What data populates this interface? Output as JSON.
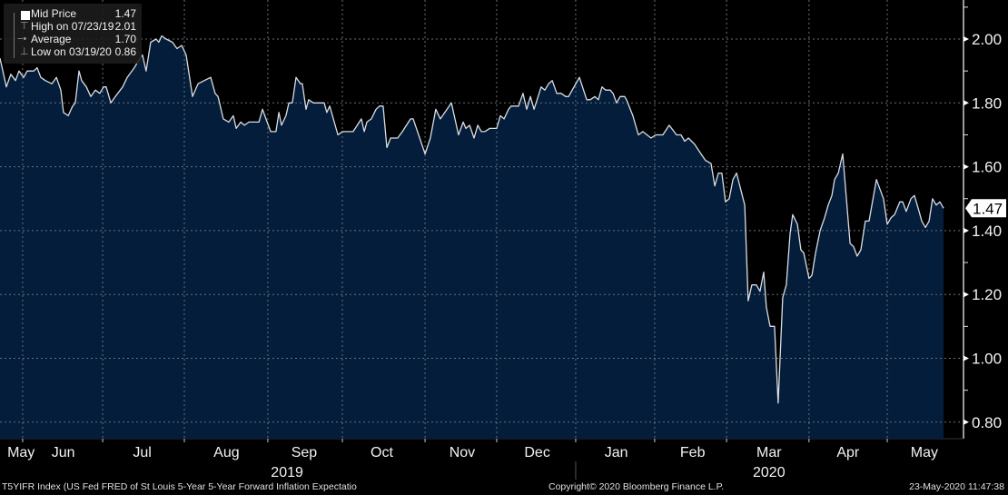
{
  "legend": {
    "items": [
      {
        "label": "Mid Price",
        "value": "1.47"
      },
      {
        "label": "High on 07/23/19",
        "value": "2.01"
      },
      {
        "label": "Average",
        "value": "1.70"
      },
      {
        "label": "Low on 03/19/20",
        "value": "0.86"
      }
    ]
  },
  "footer": {
    "security": "T5YIFR Index (US Fed FRED of St Louis 5-Year 5-Year Forward Inflation Expectatio",
    "copyright": "Copyright© 2020 Bloomberg Finance L.P.",
    "timestamp": "23-May-2020 11:47:38"
  },
  "colors": {
    "fill": "#041d3b",
    "line": "#d9dde3",
    "background": "#000000"
  },
  "chart_data": {
    "type": "area",
    "title": "",
    "xlabel": "",
    "ylabel": "",
    "x_units": "days since start of window (late May 2019)",
    "xlim": [
      0,
      365.5
    ],
    "ylim": [
      0.76,
      2.12
    ],
    "grid": true,
    "y_ticks": [
      2.0,
      1.8,
      1.6,
      1.4,
      1.2,
      1.0,
      0.8
    ],
    "y_tick_labels": [
      "2.00",
      "1.80",
      "1.60",
      "1.40",
      "1.20",
      "1.00",
      "0.80"
    ],
    "last_value_label": "1.47",
    "last_value": 1.47,
    "month_boundaries": [
      8.6,
      39,
      70,
      101.7,
      130,
      161.4,
      188.6,
      218.6,
      248.6,
      275.9,
      307.2,
      336.9
    ],
    "month_labels": [
      {
        "label": "May",
        "t": 8
      },
      {
        "label": "Jun",
        "t": 24
      },
      {
        "label": "Jul",
        "t": 54
      },
      {
        "label": "Aug",
        "t": 86
      },
      {
        "label": "Sep",
        "t": 115.5
      },
      {
        "label": "Oct",
        "t": 145
      },
      {
        "label": "Nov",
        "t": 175.5
      },
      {
        "label": "Dec",
        "t": 204
      },
      {
        "label": "Jan",
        "t": 234
      },
      {
        "label": "Feb",
        "t": 263
      },
      {
        "label": "Mar",
        "t": 292
      },
      {
        "label": "Apr",
        "t": 322
      },
      {
        "label": "May",
        "t": 351
      }
    ],
    "year_labels": [
      {
        "label": "2019",
        "t": 109
      },
      {
        "label": "2020",
        "t": 292
      }
    ],
    "year_boundary": 218.6,
    "series": [
      {
        "name": "Mid Price",
        "points": [
          [
            0,
            1.94
          ],
          [
            2.4,
            1.85
          ],
          [
            4.1,
            1.89
          ],
          [
            5.9,
            1.87
          ],
          [
            7.2,
            1.9
          ],
          [
            9.0,
            1.88
          ],
          [
            10.3,
            1.9
          ],
          [
            12.8,
            1.9
          ],
          [
            14.1,
            1.91
          ],
          [
            15.5,
            1.88
          ],
          [
            17.2,
            1.87
          ],
          [
            19.7,
            1.86
          ],
          [
            21.4,
            1.88
          ],
          [
            23.1,
            1.84
          ],
          [
            24.1,
            1.77
          ],
          [
            25.9,
            1.76
          ],
          [
            27.6,
            1.79
          ],
          [
            28.6,
            1.8
          ],
          [
            30,
            1.9
          ],
          [
            31,
            1.87
          ],
          [
            32.8,
            1.85
          ],
          [
            34.5,
            1.82
          ],
          [
            36.2,
            1.84
          ],
          [
            37.9,
            1.83
          ],
          [
            39.3,
            1.85
          ],
          [
            40.3,
            1.85
          ],
          [
            42.1,
            1.8
          ],
          [
            43.8,
            1.82
          ],
          [
            46.6,
            1.85
          ],
          [
            48.3,
            1.88
          ],
          [
            51,
            1.91
          ],
          [
            52.4,
            1.93
          ],
          [
            54.1,
            1.95
          ],
          [
            55.5,
            1.9
          ],
          [
            57.2,
            1.99
          ],
          [
            59.3,
            2.0
          ],
          [
            60.3,
            1.99
          ],
          [
            61.4,
            2.01
          ],
          [
            63.1,
            2.0
          ],
          [
            65.5,
            1.99
          ],
          [
            67.2,
            1.97
          ],
          [
            69,
            1.98
          ],
          [
            70.7,
            1.95
          ],
          [
            73.1,
            1.82
          ],
          [
            75.2,
            1.86
          ],
          [
            77.6,
            1.87
          ],
          [
            80,
            1.88
          ],
          [
            81.7,
            1.83
          ],
          [
            82.8,
            1.82
          ],
          [
            84.8,
            1.75
          ],
          [
            86.9,
            1.74
          ],
          [
            88.6,
            1.76
          ],
          [
            89.7,
            1.72
          ],
          [
            91.4,
            1.74
          ],
          [
            92.8,
            1.73
          ],
          [
            94.5,
            1.74
          ],
          [
            98.3,
            1.74
          ],
          [
            99.7,
            1.78
          ],
          [
            101,
            1.75
          ],
          [
            102.8,
            1.71
          ],
          [
            104.8,
            1.71
          ],
          [
            105.9,
            1.77
          ],
          [
            106.9,
            1.73
          ],
          [
            108.6,
            1.76
          ],
          [
            109.7,
            1.8
          ],
          [
            111,
            1.8
          ],
          [
            112.4,
            1.88
          ],
          [
            114.1,
            1.86
          ],
          [
            114.8,
            1.86
          ],
          [
            116.2,
            1.78
          ],
          [
            117.2,
            1.81
          ],
          [
            119,
            1.8
          ],
          [
            120.7,
            1.8
          ],
          [
            123.1,
            1.8
          ],
          [
            124.1,
            1.77
          ],
          [
            125.2,
            1.79
          ],
          [
            128.3,
            1.7
          ],
          [
            130,
            1.71
          ],
          [
            134.1,
            1.71
          ],
          [
            137.2,
            1.75
          ],
          [
            138.3,
            1.71
          ],
          [
            139.3,
            1.74
          ],
          [
            141,
            1.75
          ],
          [
            142.8,
            1.78
          ],
          [
            144.1,
            1.79
          ],
          [
            145.5,
            1.79
          ],
          [
            146.9,
            1.66
          ],
          [
            148.3,
            1.69
          ],
          [
            150,
            1.69
          ],
          [
            151,
            1.69
          ],
          [
            152.8,
            1.71
          ],
          [
            155.9,
            1.75
          ],
          [
            156.9,
            1.75
          ],
          [
            161.4,
            1.64
          ],
          [
            163.4,
            1.69
          ],
          [
            165.5,
            1.78
          ],
          [
            167.2,
            1.75
          ],
          [
            171.4,
            1.8
          ],
          [
            174.1,
            1.7
          ],
          [
            175.9,
            1.74
          ],
          [
            176.9,
            1.72
          ],
          [
            178.3,
            1.73
          ],
          [
            180,
            1.69
          ],
          [
            181.4,
            1.73
          ],
          [
            182.8,
            1.71
          ],
          [
            184.1,
            1.71
          ],
          [
            185.9,
            1.72
          ],
          [
            188.6,
            1.72
          ],
          [
            190,
            1.76
          ],
          [
            191.4,
            1.75
          ],
          [
            193.1,
            1.78
          ],
          [
            194.1,
            1.79
          ],
          [
            196.9,
            1.79
          ],
          [
            198.6,
            1.83
          ],
          [
            200,
            1.78
          ],
          [
            201.4,
            1.82
          ],
          [
            202.8,
            1.78
          ],
          [
            205.5,
            1.85
          ],
          [
            206.9,
            1.84
          ],
          [
            208.3,
            1.86
          ],
          [
            209.7,
            1.87
          ],
          [
            211.4,
            1.83
          ],
          [
            213.1,
            1.83
          ],
          [
            214.8,
            1.82
          ],
          [
            215.9,
            1.82
          ],
          [
            220,
            1.88
          ],
          [
            222.8,
            1.81
          ],
          [
            224.1,
            1.81
          ],
          [
            225.9,
            1.82
          ],
          [
            227.2,
            1.81
          ],
          [
            228.6,
            1.85
          ],
          [
            230,
            1.84
          ],
          [
            231.7,
            1.84
          ],
          [
            232.8,
            1.83
          ],
          [
            234.1,
            1.8
          ],
          [
            235.5,
            1.82
          ],
          [
            237.2,
            1.82
          ],
          [
            237.9,
            1.81
          ],
          [
            240.3,
            1.76
          ],
          [
            242.4,
            1.7
          ],
          [
            244.1,
            1.71
          ],
          [
            247.2,
            1.69
          ],
          [
            249,
            1.7
          ],
          [
            251.7,
            1.7
          ],
          [
            254.1,
            1.73
          ],
          [
            256.9,
            1.7
          ],
          [
            258.6,
            1.7
          ],
          [
            260,
            1.68
          ],
          [
            261.4,
            1.69
          ],
          [
            263.8,
            1.67
          ],
          [
            266.2,
            1.64
          ],
          [
            267.9,
            1.62
          ],
          [
            270,
            1.61
          ],
          [
            271.4,
            1.54
          ],
          [
            272.8,
            1.58
          ],
          [
            274.1,
            1.58
          ],
          [
            275.5,
            1.49
          ],
          [
            276.9,
            1.5
          ],
          [
            278.3,
            1.56
          ],
          [
            279.7,
            1.58
          ],
          [
            282.8,
            1.48
          ],
          [
            284.1,
            1.18
          ],
          [
            285.5,
            1.23
          ],
          [
            287.2,
            1.23
          ],
          [
            288.6,
            1.21
          ],
          [
            290,
            1.27
          ],
          [
            291,
            1.16
          ],
          [
            292.4,
            1.1
          ],
          [
            294.1,
            1.1
          ],
          [
            295.5,
            0.86
          ],
          [
            297.2,
            1.19
          ],
          [
            298.6,
            1.23
          ],
          [
            300,
            1.39
          ],
          [
            301,
            1.45
          ],
          [
            302.8,
            1.42
          ],
          [
            304.1,
            1.34
          ],
          [
            305.2,
            1.33
          ],
          [
            307.2,
            1.25
          ],
          [
            308.3,
            1.26
          ],
          [
            309.7,
            1.33
          ],
          [
            311.4,
            1.4
          ],
          [
            313.1,
            1.44
          ],
          [
            314.5,
            1.48
          ],
          [
            315.9,
            1.51
          ],
          [
            316.9,
            1.56
          ],
          [
            318.3,
            1.58
          ],
          [
            320,
            1.64
          ],
          [
            322.8,
            1.36
          ],
          [
            324.1,
            1.35
          ],
          [
            325.5,
            1.32
          ],
          [
            326.9,
            1.34
          ],
          [
            328.6,
            1.43
          ],
          [
            330,
            1.43
          ],
          [
            332.8,
            1.56
          ],
          [
            335.5,
            1.5
          ],
          [
            336.9,
            1.42
          ],
          [
            338.3,
            1.44
          ],
          [
            339.7,
            1.45
          ],
          [
            341.7,
            1.49
          ],
          [
            342.8,
            1.49
          ],
          [
            344.1,
            1.46
          ],
          [
            345.9,
            1.5
          ],
          [
            347.2,
            1.51
          ],
          [
            349,
            1.46
          ],
          [
            350,
            1.43
          ],
          [
            351.4,
            1.41
          ],
          [
            352.8,
            1.43
          ],
          [
            354.1,
            1.5
          ],
          [
            355.5,
            1.48
          ],
          [
            356.9,
            1.49
          ],
          [
            358.3,
            1.47
          ]
        ]
      }
    ]
  }
}
